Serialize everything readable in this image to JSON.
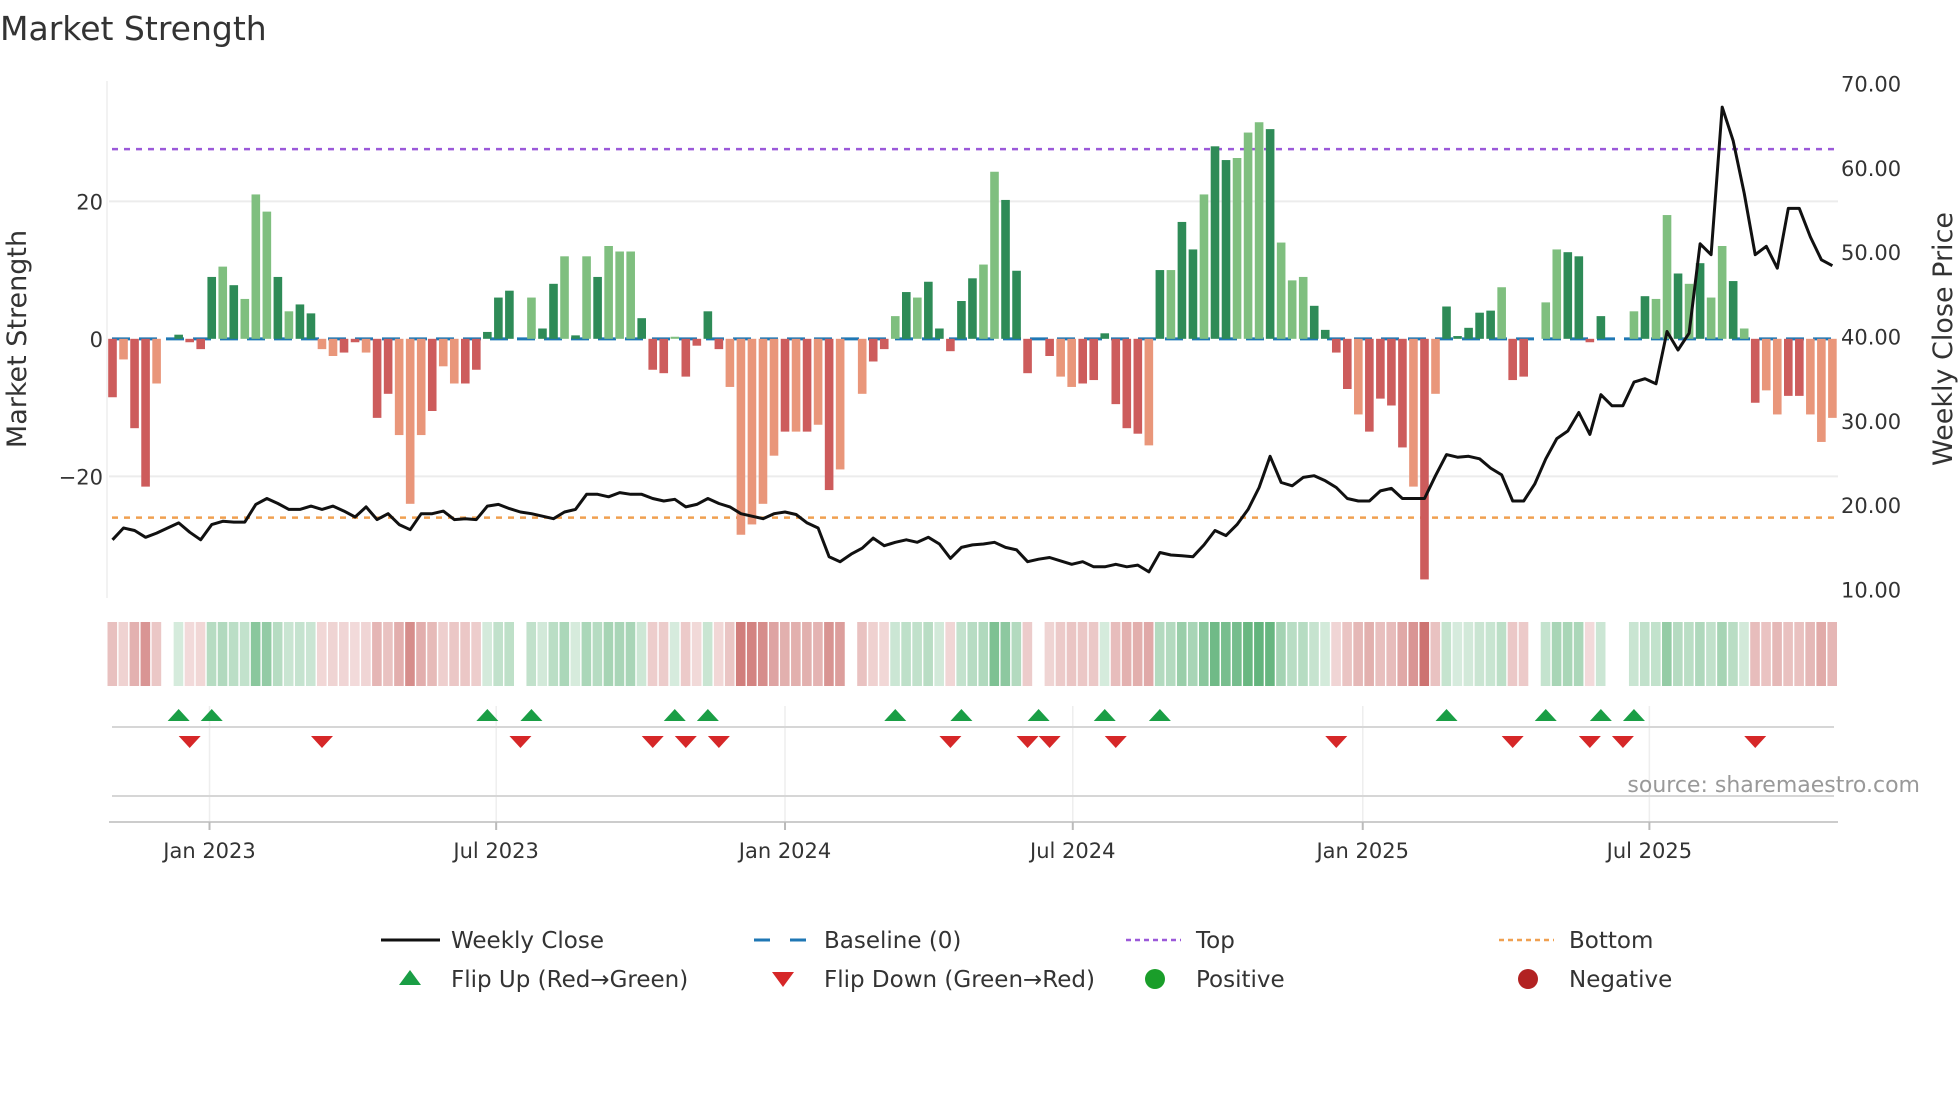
{
  "chart_data": {
    "type": "bar",
    "title": "Market Strength",
    "ylabel": "Market Strength",
    "y2label": "Weekly Close Price",
    "ylim": [
      -37.7,
      37.5
    ],
    "y2lim": [
      9.0,
      70.3
    ],
    "yticks": [
      {
        "value": 20,
        "label": "20"
      },
      {
        "value": 0,
        "label": "0"
      },
      {
        "value": -20,
        "label": "−20"
      }
    ],
    "y2ticks": [
      {
        "value": 70,
        "label": "70.00"
      },
      {
        "value": 60,
        "label": "60.00"
      },
      {
        "value": 50,
        "label": "50.00"
      },
      {
        "value": 40,
        "label": "40.00"
      },
      {
        "value": 30,
        "label": "30.00"
      },
      {
        "value": 20,
        "label": "20.00"
      },
      {
        "value": 10,
        "label": "10.00"
      }
    ],
    "xticks": [
      {
        "week": 8.8,
        "label": "Jan 2023"
      },
      {
        "week": 34.8,
        "label": "Jul 2023"
      },
      {
        "week": 61.0,
        "label": "Jan 2024"
      },
      {
        "week": 87.1,
        "label": "Jul 2024"
      },
      {
        "week": 113.4,
        "label": "Jan 2025"
      },
      {
        "week": 139.4,
        "label": "Jul 2025"
      }
    ],
    "grid": true,
    "top_level": 27.6,
    "bottom_level": -26,
    "baseline": 0,
    "strength": [
      -8.5,
      -3,
      -13,
      -21.5,
      -6.5,
      0,
      0.6,
      -0.5,
      -1.5,
      9,
      10.5,
      7.8,
      5.8,
      21,
      18.5,
      9,
      4,
      5,
      3.7,
      -1.5,
      -2.5,
      -2,
      -0.5,
      -2,
      -11.5,
      -8,
      -14,
      -24,
      -14,
      -10.5,
      -4,
      -6.5,
      -6.5,
      -4.5,
      1,
      6,
      7,
      0,
      6,
      1.5,
      8,
      12,
      0.5,
      12,
      9,
      13.5,
      12.7,
      12.7,
      3,
      -4.5,
      -5,
      0.3,
      -5.5,
      -1,
      4,
      -1.5,
      -7,
      -28.5,
      -27,
      -24,
      -17,
      -13.5,
      -13.5,
      -13.5,
      -12.5,
      -22,
      -19,
      0,
      -8,
      -3.3,
      -1.5,
      3.3,
      6.8,
      6,
      8.3,
      1.5,
      -1.8,
      5.5,
      8.8,
      10.8,
      24.3,
      20.2,
      9.9,
      -5,
      0,
      -2.5,
      -5.5,
      -7,
      -6.5,
      -6,
      0.8,
      -9.5,
      -13,
      -13.8,
      -15.5,
      10,
      10,
      17,
      13,
      21,
      28,
      26,
      26.3,
      30,
      31.5,
      30.5,
      14,
      8.5,
      9,
      4.8,
      1.3,
      -2,
      -7.3,
      -11,
      -13.5,
      -8.7,
      -9.7,
      -15.8,
      -21.5,
      -35,
      -8,
      4.7,
      0.4,
      1.6,
      3.8,
      4.1,
      7.5,
      -6,
      -5.5,
      0,
      5.3,
      13,
      12.6,
      12,
      -0.5,
      3.3,
      0,
      0,
      4,
      6.2,
      5.8,
      18,
      9.5,
      8,
      11,
      6,
      13.5,
      8.4,
      1.5,
      -9.3,
      -7.5,
      -11,
      -8.3,
      -8.3,
      -11,
      -15,
      -11.5
    ],
    "shade": "dlddldddddldllldlddllddlddllldllddddddlddldldllldddlddddll llldldldlllddldldddddlldddddllddddddldlddlddllldlllddddldddd ldldddddldddlldddddd ldlldldlldldllddl",
    "weekly_close": [
      15.9,
      17.3,
      17.0,
      16.2,
      16.7,
      17.3,
      17.9,
      16.8,
      15.9,
      17.7,
      18.1,
      18.0,
      18.0,
      20.1,
      20.8,
      20.2,
      19.5,
      19.5,
      19.9,
      19.5,
      19.9,
      19.3,
      18.6,
      19.8,
      18.3,
      19.0,
      17.7,
      17.1,
      19.0,
      19.0,
      19.3,
      18.3,
      18.4,
      18.3,
      19.9,
      20.1,
      19.6,
      19.2,
      19.0,
      18.7,
      18.4,
      19.2,
      19.5,
      21.3,
      21.3,
      21.0,
      21.5,
      21.3,
      21.3,
      20.8,
      20.5,
      20.7,
      19.8,
      20.1,
      20.8,
      20.2,
      19.8,
      19.0,
      18.7,
      18.4,
      19.0,
      19.2,
      18.9,
      17.9,
      17.3,
      13.9,
      13.3,
      14.2,
      14.9,
      16.1,
      15.2,
      15.6,
      15.9,
      15.6,
      16.2,
      15.4,
      13.7,
      15.0,
      15.3,
      15.4,
      15.6,
      15.0,
      14.7,
      13.3,
      13.6,
      13.8,
      13.4,
      13.0,
      13.3,
      12.7,
      12.7,
      13.0,
      12.7,
      12.9,
      12.1,
      14.4,
      14.1,
      14.0,
      13.9,
      15.3,
      17.0,
      16.4,
      17.7,
      19.5,
      22.1,
      25.8,
      22.7,
      22.3,
      23.3,
      23.5,
      22.9,
      22.1,
      20.8,
      20.5,
      20.5,
      21.7,
      22.0,
      20.8,
      20.8,
      20.8,
      23.5,
      26.0,
      25.7,
      25.8,
      25.5,
      24.4,
      23.6,
      20.5,
      20.5,
      22.5,
      25.5,
      27.9,
      28.8,
      31.0,
      28.4,
      33.1,
      31.8,
      31.8,
      34.6,
      35.0,
      34.4,
      40.6,
      38.4,
      40.4,
      51.0,
      49.7,
      67.2,
      63.2,
      57.0,
      49.7,
      50.7,
      48.1,
      55.2,
      55.2,
      51.8,
      49.1,
      48.4
    ],
    "flip_up_weeks": [
      6,
      9,
      34,
      38,
      51,
      54,
      71,
      77,
      84,
      90,
      95,
      121,
      130,
      135,
      138
    ],
    "flip_down_weeks": [
      7,
      19,
      37,
      49,
      52,
      55,
      76,
      83,
      85,
      91,
      111,
      127,
      134,
      137,
      149
    ],
    "legend": {
      "placement": "bottom",
      "items": [
        {
          "key": "close",
          "label": "Weekly Close"
        },
        {
          "key": "baseline",
          "label": "Baseline (0)"
        },
        {
          "key": "top",
          "label": "Top"
        },
        {
          "key": "bottom",
          "label": "Bottom"
        },
        {
          "key": "flip_up",
          "label": "Flip Up (Red→Green)"
        },
        {
          "key": "flip_down",
          "label": "Flip Down (Green→Red)"
        },
        {
          "key": "positive",
          "label": "Positive"
        },
        {
          "key": "negative",
          "label": "Negative"
        }
      ]
    },
    "source": "source: sharemaestro.com"
  },
  "colors": {
    "pos_dark": "#2e8b57",
    "pos_light": "#7fbf7f",
    "neg_dark": "#cd5c5c",
    "neg_light": "#e9967a",
    "close": "#111111",
    "baseline": "#1f77b4",
    "top": "#9b59d9",
    "bottom": "#f0a050",
    "flip_up": "#1a9e45",
    "flip_down": "#d62728",
    "positive": "#1a9e2a",
    "negative": "#b22222"
  }
}
